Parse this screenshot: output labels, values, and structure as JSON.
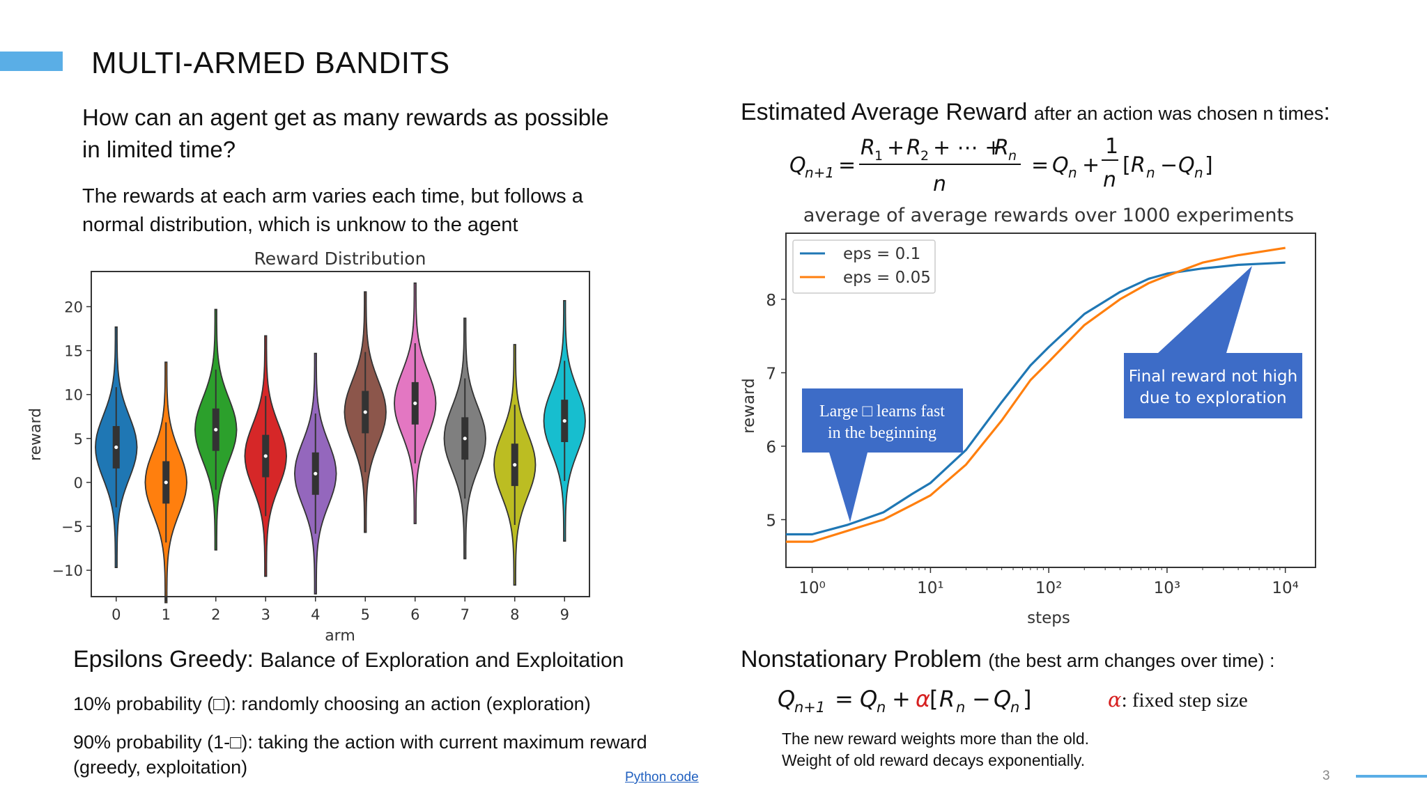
{
  "slide": {
    "title": "MULTI-ARMED BANDITS",
    "question": "How can an agent get as many rewards as possible in limited time?",
    "description": "The rewards at each arm varies each time, but follows a normal distribution, which is unknow to the agent",
    "epsilon_heading": "Epsilons Greedy:",
    "epsilon_heading_sub": "Balance of Exploration and Exploitation",
    "eps_line1": "10% probability (□):   randomly choosing an action (exploration)",
    "eps_line2": "90% probability (1-□):   taking the action with current maximum reward (greedy, exploitation)",
    "estimated_heading": "Estimated Average Reward",
    "estimated_heading_sub": "after an action was chosen n times",
    "estimated_colon": ":",
    "nonstationary_heading": "Nonstationary Problem",
    "nonstationary_sub": "(the best arm changes over time) :",
    "alpha_note": ": fixed step size",
    "nonstat_line1": "The new reward weights more than the old.",
    "nonstat_line2": "Weight of old reward decays exponentially.",
    "link": "Python code",
    "page_number": "3",
    "accent_color": "#5aaee6"
  },
  "callouts": {
    "large_eps": [
      "Large □ learns fast",
      "in the beginning"
    ],
    "final_reward": [
      "Final reward not high",
      "due to exploration"
    ],
    "color": "#3d6cc7"
  },
  "chart_data": [
    {
      "type": "violin",
      "title": "Reward Distribution",
      "xlabel": "arm",
      "ylabel": "reward",
      "categories": [
        "0",
        "1",
        "2",
        "3",
        "4",
        "5",
        "6",
        "7",
        "8",
        "9"
      ],
      "medians": [
        4,
        0,
        6,
        3,
        1,
        8,
        9,
        5,
        2,
        7
      ],
      "stdev": 3.6,
      "ylim": [
        -13,
        24
      ],
      "yticks": [
        -10,
        -5,
        0,
        5,
        10,
        15,
        20
      ],
      "ytick_labels": [
        "−10",
        "−5",
        "0",
        "5",
        "10",
        "15",
        "20"
      ],
      "colors": [
        "#1f77b4",
        "#ff7f0e",
        "#2ca02c",
        "#d62728",
        "#9467bd",
        "#8c564b",
        "#e377c2",
        "#7f7f7f",
        "#bcbd22",
        "#17becf"
      ]
    },
    {
      "type": "line",
      "title": "average of average rewards over 1000 experiments",
      "xlabel": "steps",
      "ylabel": "reward",
      "xscale": "log",
      "xlim": [
        0.6,
        18000
      ],
      "ylim": [
        4.35,
        8.9
      ],
      "xticks": [
        1,
        10,
        100,
        1000,
        10000
      ],
      "xtick_labels": [
        "10⁰",
        "10¹",
        "10²",
        "10³",
        "10⁴"
      ],
      "yticks": [
        5,
        6,
        7,
        8
      ],
      "ytick_labels": [
        "5",
        "6",
        "7",
        "8"
      ],
      "legend": "top-left",
      "series": [
        {
          "name": "eps = 0.1",
          "color": "#1f77b4",
          "x": [
            0.6,
            1,
            2,
            4,
            7,
            10,
            20,
            40,
            70,
            100,
            200,
            400,
            700,
            1000,
            2000,
            4000,
            10000
          ],
          "y": [
            4.8,
            4.8,
            4.93,
            5.1,
            5.35,
            5.5,
            5.95,
            6.6,
            7.1,
            7.35,
            7.8,
            8.1,
            8.28,
            8.35,
            8.42,
            8.47,
            8.5
          ]
        },
        {
          "name": "eps = 0.05",
          "color": "#ff7f0e",
          "x": [
            0.6,
            1,
            2,
            4,
            7,
            10,
            20,
            40,
            70,
            100,
            200,
            400,
            700,
            1000,
            2000,
            4000,
            10000
          ],
          "y": [
            4.7,
            4.7,
            4.85,
            5.0,
            5.2,
            5.33,
            5.75,
            6.35,
            6.9,
            7.15,
            7.65,
            8.0,
            8.22,
            8.32,
            8.5,
            8.6,
            8.7
          ]
        }
      ]
    }
  ]
}
